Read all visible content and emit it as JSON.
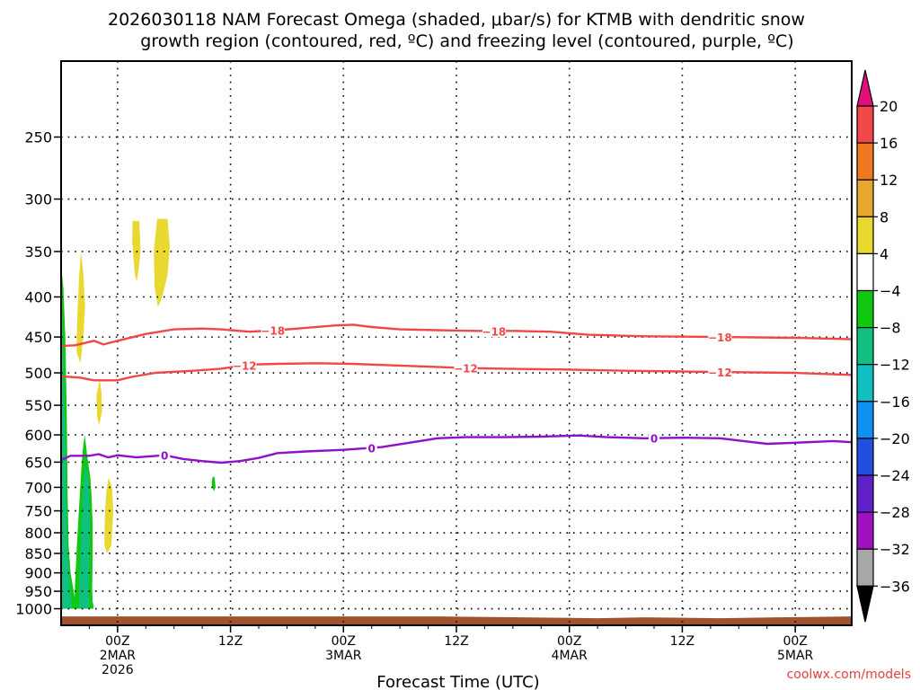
{
  "chart_data": {
    "type": "time-height cross section",
    "title_line1": "2026030118 NAM Forecast Omega (shaded, μbar/s) for KTMB with dendritic snow",
    "title_line2": "growth region (contoured, red, ºC) and freezing level (contoured, purple, ºC)",
    "xlabel": "Forecast Time (UTC)",
    "credit": "coolwx.com/models",
    "init": "2026-03-01T18Z",
    "x_range_hours": [
      0,
      84
    ],
    "y_axis": {
      "scale": "log-pressure",
      "range_mb": [
        1050,
        200
      ],
      "ticks": [
        250,
        300,
        350,
        400,
        450,
        500,
        550,
        600,
        650,
        700,
        750,
        800,
        850,
        900,
        950,
        1000
      ],
      "grid": "dotted"
    },
    "x_ticks": [
      {
        "hour": 6,
        "line1": "00Z",
        "line2": "2MAR",
        "line3": "2026"
      },
      {
        "hour": 18,
        "line1": "12Z",
        "line2": "",
        "line3": ""
      },
      {
        "hour": 30,
        "line1": "00Z",
        "line2": "3MAR",
        "line3": ""
      },
      {
        "hour": 42,
        "line1": "12Z",
        "line2": "",
        "line3": ""
      },
      {
        "hour": 54,
        "line1": "00Z",
        "line2": "4MAR",
        "line3": ""
      },
      {
        "hour": 66,
        "line1": "12Z",
        "line2": "",
        "line3": ""
      },
      {
        "hour": 78,
        "line1": "00Z",
        "line2": "5MAR",
        "line3": ""
      }
    ],
    "colorbar": {
      "labels": [
        "20",
        "16",
        "12",
        "8",
        "4",
        "−4",
        "−8",
        "−12",
        "−16",
        "−20",
        "−24",
        "−28",
        "−32",
        "−36"
      ],
      "bins": [
        {
          "color": "#f04848"
        },
        {
          "color": "#f07820"
        },
        {
          "color": "#e8a830"
        },
        {
          "color": "#e8d830"
        },
        {
          "color": "#ffffff"
        },
        {
          "color": "#10c810"
        },
        {
          "color": "#10c080"
        },
        {
          "color": "#10c0c0"
        },
        {
          "color": "#1090f0"
        },
        {
          "color": "#2050e0"
        },
        {
          "color": "#6020c8"
        },
        {
          "color": "#a010c0"
        },
        {
          "color": "#a8a8a8"
        }
      ],
      "top_triangle_color": "#e0107a",
      "bottom_triangle_color": "#000000"
    },
    "contours": [
      {
        "name": "−18",
        "color": "#f04848",
        "label_hours": [
          22.5,
          46,
          70
        ],
        "points": [
          [
            0,
            462
          ],
          [
            1.5,
            461
          ],
          [
            3.5,
            455
          ],
          [
            4.5,
            460
          ],
          [
            6,
            455
          ],
          [
            9,
            446
          ],
          [
            12,
            440
          ],
          [
            15,
            439
          ],
          [
            17,
            440
          ],
          [
            20,
            443
          ],
          [
            23,
            441
          ],
          [
            26,
            438
          ],
          [
            29,
            435
          ],
          [
            31,
            434
          ],
          [
            33,
            437
          ],
          [
            36,
            440
          ],
          [
            40,
            441
          ],
          [
            44,
            442
          ],
          [
            48,
            442
          ],
          [
            52,
            443
          ],
          [
            56,
            447
          ],
          [
            62,
            449
          ],
          [
            70,
            450
          ],
          [
            78,
            451
          ],
          [
            84,
            453
          ]
        ]
      },
      {
        "name": "−12",
        "color": "#f04848",
        "label_hours": [
          19.5,
          43,
          70
        ],
        "points": [
          [
            0,
            505
          ],
          [
            2,
            507
          ],
          [
            3.5,
            511
          ],
          [
            6,
            511
          ],
          [
            7.5,
            506
          ],
          [
            10,
            500
          ],
          [
            14,
            497
          ],
          [
            17,
            494
          ],
          [
            20,
            488
          ],
          [
            23,
            487
          ],
          [
            27,
            486
          ],
          [
            31,
            487
          ],
          [
            35,
            489
          ],
          [
            39,
            491
          ],
          [
            43,
            493
          ],
          [
            47,
            494
          ],
          [
            53,
            495
          ],
          [
            60,
            497
          ],
          [
            66,
            498
          ],
          [
            72,
            499
          ],
          [
            78,
            500
          ],
          [
            84,
            503
          ]
        ]
      },
      {
        "name": "0",
        "color": "#9010c8",
        "label_hours": [
          11,
          33,
          63
        ],
        "points": [
          [
            0,
            646
          ],
          [
            1,
            638
          ],
          [
            3,
            638
          ],
          [
            4,
            635
          ],
          [
            5,
            641
          ],
          [
            6,
            637
          ],
          [
            8,
            641
          ],
          [
            11,
            637
          ],
          [
            13,
            644
          ],
          [
            15,
            648
          ],
          [
            17,
            651
          ],
          [
            19,
            648
          ],
          [
            21,
            642
          ],
          [
            23,
            633
          ],
          [
            26,
            630
          ],
          [
            30,
            627
          ],
          [
            34,
            622
          ],
          [
            37,
            614
          ],
          [
            40,
            606
          ],
          [
            43,
            604
          ],
          [
            47,
            604
          ],
          [
            51,
            603
          ],
          [
            55,
            601
          ],
          [
            58,
            604
          ],
          [
            62,
            606
          ],
          [
            66,
            605
          ],
          [
            70,
            606
          ],
          [
            73,
            612
          ],
          [
            75,
            616
          ],
          [
            78,
            614
          ],
          [
            82,
            611
          ],
          [
            84,
            613
          ]
        ]
      }
    ],
    "shading": [
      {
        "bin": "-4 to -8",
        "color": "#10c810",
        "points": [
          [
            0,
            365
          ],
          [
            0.25,
            390
          ],
          [
            0.45,
            450
          ],
          [
            0.6,
            560
          ],
          [
            0.7,
            720
          ],
          [
            0.8,
            830
          ],
          [
            1.0,
            900
          ],
          [
            1.35,
            950
          ],
          [
            1.6,
            1000
          ],
          [
            0.0,
            1000
          ]
        ]
      },
      {
        "bin": "-4 to -8",
        "color": "#10c810",
        "points": [
          [
            1.4,
            1000
          ],
          [
            1.5,
            920
          ],
          [
            1.7,
            820
          ],
          [
            1.95,
            730
          ],
          [
            2.2,
            650
          ],
          [
            2.35,
            620
          ],
          [
            2.5,
            600
          ],
          [
            2.6,
            612
          ],
          [
            2.8,
            640
          ],
          [
            3.1,
            680
          ],
          [
            3.25,
            720
          ],
          [
            3.35,
            780
          ],
          [
            3.35,
            860
          ],
          [
            3.3,
            940
          ],
          [
            3.35,
            980
          ],
          [
            3.45,
            990
          ],
          [
            3.45,
            1000
          ]
        ]
      },
      {
        "bin": "-8 to -12",
        "color": "#10c080",
        "points": [
          [
            0.12,
            420
          ],
          [
            0.3,
            500
          ],
          [
            0.45,
            620
          ],
          [
            0.55,
            740
          ],
          [
            0.72,
            860
          ],
          [
            1.0,
            950
          ],
          [
            1.15,
            1000
          ],
          [
            0.0,
            1000
          ],
          [
            0.0,
            450
          ]
        ]
      },
      {
        "bin": "-8 to -12",
        "color": "#10c080",
        "points": [
          [
            1.9,
            1000
          ],
          [
            1.95,
            920
          ],
          [
            2.1,
            820
          ],
          [
            2.3,
            720
          ],
          [
            2.5,
            660
          ],
          [
            2.75,
            665
          ],
          [
            3.0,
            700
          ],
          [
            3.05,
            780
          ],
          [
            3.0,
            860
          ],
          [
            2.95,
            940
          ],
          [
            3.0,
            990
          ],
          [
            3.0,
            1000
          ]
        ]
      },
      {
        "bin": "-4 to -8",
        "color": "#10c810",
        "points": [
          [
            16.0,
            690
          ],
          [
            16.12,
            678
          ],
          [
            16.3,
            680
          ],
          [
            16.42,
            700
          ],
          [
            16.25,
            708
          ],
          [
            16.05,
            700
          ]
        ]
      },
      {
        "bin": "4 to 8",
        "color": "#e8d830",
        "points": [
          [
            7.6,
            320
          ],
          [
            8.3,
            320
          ],
          [
            8.45,
            348
          ],
          [
            8.25,
            368
          ],
          [
            8.05,
            382
          ],
          [
            7.85,
            375
          ],
          [
            7.55,
            340
          ]
        ]
      },
      {
        "bin": "4 to 8",
        "color": "#e8d830",
        "points": [
          [
            10.2,
            318
          ],
          [
            11.3,
            318
          ],
          [
            11.55,
            345
          ],
          [
            11.3,
            375
          ],
          [
            10.8,
            398
          ],
          [
            10.3,
            412
          ],
          [
            9.95,
            390
          ],
          [
            9.85,
            350
          ]
        ]
      },
      {
        "bin": "4 to 8",
        "color": "#e8d830",
        "points": [
          [
            2.1,
            350
          ],
          [
            2.35,
            372
          ],
          [
            2.55,
            410
          ],
          [
            2.35,
            452
          ],
          [
            2.05,
            486
          ],
          [
            1.65,
            470
          ],
          [
            1.7,
            430
          ],
          [
            1.9,
            380
          ]
        ]
      },
      {
        "bin": "4 to 8",
        "color": "#e8d830",
        "points": [
          [
            4.1,
            510
          ],
          [
            4.3,
            530
          ],
          [
            4.35,
            560
          ],
          [
            4.05,
            583
          ],
          [
            3.85,
            570
          ],
          [
            3.75,
            535
          ]
        ]
      },
      {
        "bin": "4 to 8",
        "color": "#e8d830",
        "points": [
          [
            5.05,
            680
          ],
          [
            5.4,
            700
          ],
          [
            5.55,
            750
          ],
          [
            5.35,
            830
          ],
          [
            4.9,
            850
          ],
          [
            4.6,
            830
          ],
          [
            4.65,
            760
          ],
          [
            4.8,
            710
          ]
        ]
      }
    ],
    "ground": {
      "color": "#a0522d",
      "top_mb": 1023
    }
  }
}
